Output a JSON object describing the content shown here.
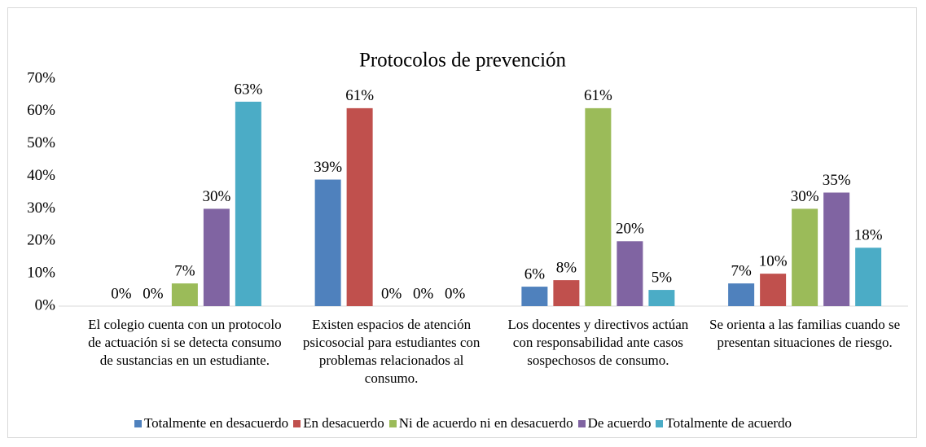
{
  "chart_data": {
    "type": "bar",
    "title": "Protocolos de prevención",
    "categories": [
      "El colegio cuenta con un protocolo de actuación si se detecta consumo de sustancias en un estudiante.",
      "Existen espacios de atención psicosocial para estudiantes con problemas relacionados al consumo.",
      "Los docentes y directivos actúan con responsabilidad ante casos sospechosos de consumo.",
      "Se orienta a las familias cuando se presentan situaciones de riesgo."
    ],
    "series": [
      {
        "name": "Totalmente en desacuerdo",
        "color": "#4f81bd",
        "values": [
          0,
          39,
          6,
          7
        ],
        "value_labels": [
          "0%",
          "39%",
          "6%",
          "7%"
        ]
      },
      {
        "name": "En desacuerdo",
        "color": "#c0504d",
        "values": [
          0,
          61,
          8,
          10
        ],
        "value_labels": [
          "0%",
          "61%",
          "8%",
          "10%"
        ]
      },
      {
        "name": "Ni de acuerdo ni en desacuerdo",
        "color": "#9bbb59",
        "values": [
          7,
          0,
          61,
          30
        ],
        "value_labels": [
          "7%",
          "0%",
          "61%",
          "30%"
        ]
      },
      {
        "name": "De acuerdo",
        "color": "#8064a2",
        "values": [
          30,
          0,
          20,
          35
        ],
        "value_labels": [
          "30%",
          "0%",
          "20%",
          "35%"
        ]
      },
      {
        "name": "Totalmente de acuerdo",
        "color": "#4bacc6",
        "values": [
          63,
          0,
          5,
          18
        ],
        "value_labels": [
          "63%",
          "0%",
          "5%",
          "18%"
        ]
      }
    ],
    "ylim": [
      0,
      70
    ],
    "yticks": [
      {
        "value": 0,
        "label": "0%"
      },
      {
        "value": 10,
        "label": "10%"
      },
      {
        "value": 20,
        "label": "20%"
      },
      {
        "value": 30,
        "label": "30%"
      },
      {
        "value": 40,
        "label": "40%"
      },
      {
        "value": 50,
        "label": "50%"
      },
      {
        "value": 60,
        "label": "60%"
      },
      {
        "value": 70,
        "label": "70%"
      }
    ],
    "legend": "bottom"
  }
}
